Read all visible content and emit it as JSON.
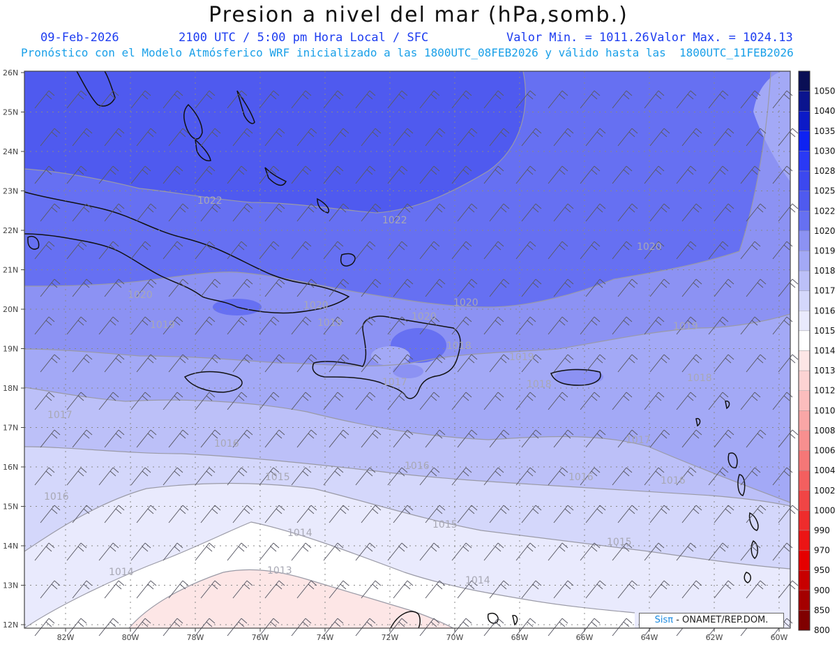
{
  "header": {
    "title": "Presion a nivel del mar (hPa,somb.)",
    "date": "09-Feb-2026",
    "time": "2100 UTC / 5:00 pm Hora Local / SFC",
    "min": "Valor Min. = 1011.26",
    "max": "Valor Max. = 1024.13",
    "model": "Pronóstico con el Modelo Atmósferico WRF inicializado a las 1800UTC_08FEB2026 y válido hasta las  1800UTC_11FEB2026"
  },
  "axes": {
    "lat_labels": [
      "26N",
      "25N",
      "24N",
      "23N",
      "22N",
      "21N",
      "20N",
      "19N",
      "18N",
      "17N",
      "16N",
      "15N",
      "14N",
      "13N",
      "12N"
    ],
    "lon_labels": [
      "82W",
      "80W",
      "78W",
      "76W",
      "74W",
      "72W",
      "70W",
      "68W",
      "66W",
      "64W",
      "62W",
      "60W"
    ]
  },
  "isobar_labels": [
    "1022",
    "1022",
    "1020",
    "1020",
    "1020",
    "1020",
    "1020",
    "1019",
    "1019",
    "1019",
    "1019",
    "1018",
    "1018",
    "1018",
    "1017",
    "1017",
    "1017",
    "1016",
    "1016",
    "1016",
    "1016",
    "1016",
    "1015",
    "1015",
    "1015",
    "1014",
    "1014",
    "1014",
    "1013"
  ],
  "colorbar": {
    "labels": [
      "1050",
      "1040",
      "1035",
      "1030",
      "1028",
      "1025",
      "1022",
      "1020",
      "1019",
      "1018",
      "1017",
      "1016",
      "1015",
      "1014",
      "1013",
      "1012",
      "1010",
      "1008",
      "1006",
      "1004",
      "1002",
      "1000",
      "990",
      "970",
      "950",
      "900",
      "850",
      "800"
    ],
    "colors": [
      "#0a0f55",
      "#0b148e",
      "#0c1ac7",
      "#0e22f2",
      "#2a39f5",
      "#3c48ef",
      "#4f5aef",
      "#6670f2",
      "#8c92f3",
      "#a3a9f6",
      "#bcc0f8",
      "#d4d7fb",
      "#e9eafd",
      "#ffffff",
      "#fde6e6",
      "#fcd3d3",
      "#fbbdbd",
      "#f9a6a6",
      "#f78f8f",
      "#f57777",
      "#f35f5f",
      "#f04545",
      "#ee2c2c",
      "#eb1515",
      "#e50000",
      "#c80000",
      "#a40000",
      "#800000"
    ]
  },
  "credit": {
    "sis": "Sisπ",
    "org": "- ONAMET/REP.DOM."
  }
}
